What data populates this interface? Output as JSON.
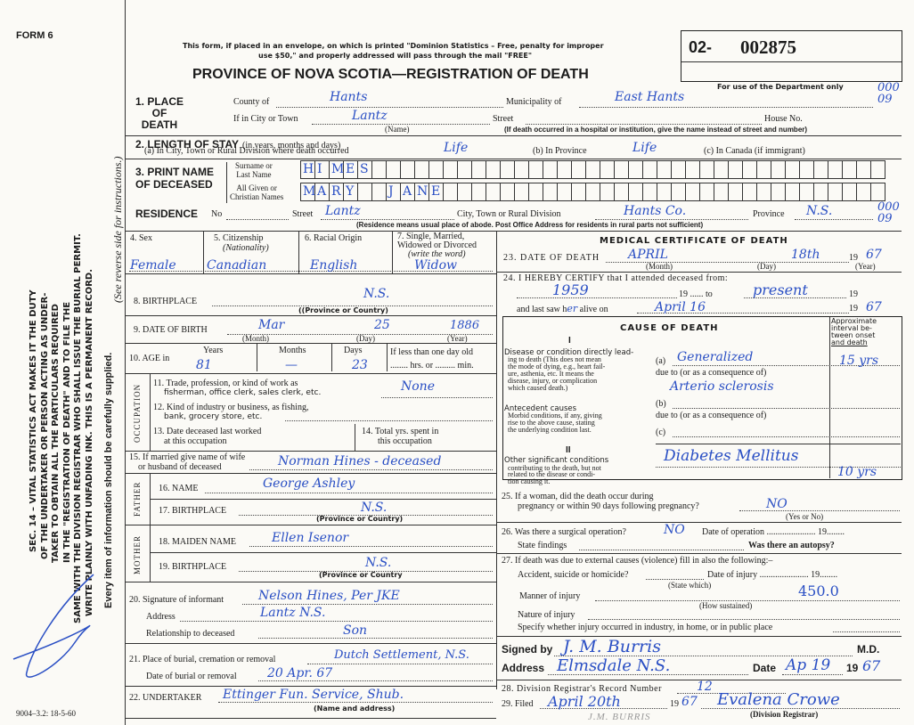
{
  "form": {
    "form_number": "FORM 6",
    "notice": [
      "This form, if placed in an envelope, on which is printed \"Dominion Statistics – Free, penalty for improper",
      "use $50,\" and properly addressed will pass through the mail \"FREE\""
    ],
    "title": "PROVINCE OF NOVA SCOTIA—REGISTRATION OF DEATH",
    "registration_number_prefix": "02-",
    "registration_number": "002875",
    "department_note": "For use of the Department only",
    "department_codes": [
      "000",
      "09",
      "000",
      "09"
    ],
    "print_code": "9004–3.2: 18-5-60"
  },
  "sidebar": {
    "statute_lines": [
      "SEC. 14 – VITAL STATISTICS ACT MAKES IT THE DUTY",
      "OF THE UNDERTAKER OR PERSON ACTING AS UNDER-",
      "TAKER TO OBTAIN ALL THE PARTICULARS REQUIRED",
      "IN THE \"REGISTRATION OF DEATH\" AND TO FILE THE",
      "SAME WITH THE DIVISION REGISTRAR WHO SHALL ISSUE THE BURIAL PERMIT.",
      "WRITE PLAINLY WITH UNFADING INK. THIS IS A PERMANENT RECORD."
    ],
    "every_item": "Every item of information should be carefully supplied.",
    "see_reverse": "(See reverse side for instructions.)"
  },
  "place_of_death": {
    "label": "1. PLACE OF DEATH",
    "label_lines": [
      "1. PLACE",
      "OF",
      "DEATH"
    ],
    "county_label": "County of",
    "county_value": "Hants",
    "municipality_label": "Municipality of",
    "municipality_value": "East Hants",
    "city_label": "If in City or Town",
    "city_value": "Lantz",
    "name_caption": "(Name)",
    "street_label": "Street",
    "house_label": "House No.",
    "hospital_note": "(If death occurred in a hospital or institution, give the name instead of street and number)"
  },
  "length_of_stay": {
    "label": "2. LENGTH OF STAY",
    "label_suffix": "(in years, months and days)",
    "a_label": "(a) In City, Town or Rural Division where death occurred",
    "a_value": "Life",
    "b_label": "(b) In Province",
    "b_value": "Life",
    "c_label": "(c) In Canada (if immigrant)"
  },
  "name": {
    "label_lines": [
      "3. PRINT NAME",
      "OF DECEASED"
    ],
    "surname_label_lines": [
      "Surname or",
      "Last Name"
    ],
    "given_label_lines": [
      "All Given or",
      "Christian Names"
    ],
    "surname_letters": [
      "H",
      "I",
      "M",
      "E",
      "S"
    ],
    "given_letters": [
      "M",
      "A",
      "R",
      "Y",
      "",
      "",
      "J",
      "A",
      "N",
      "E"
    ]
  },
  "residence": {
    "label": "RESIDENCE",
    "no_label": "No",
    "street_label": "Street",
    "street_value": "Lantz",
    "city_label": "City, Town or Rural Division",
    "city_value": "Hants Co.",
    "province_label": "Province",
    "province_value": "N.S.",
    "note": "(Residence means usual place of abode. Post Office Address for residents in rural parts not sufficient)"
  },
  "personal": {
    "sex_label": "4. Sex",
    "sex_value": "Female",
    "citizenship_label": "5. Citizenship",
    "citizenship_sub": "(Nationality)",
    "citizenship_value": "Canadian",
    "racial_label": "6. Racial Origin",
    "racial_value": "English",
    "marital_label_lines": [
      "7. Single, Married,",
      "Widowed or Divorced",
      "(write the word)"
    ],
    "marital_value": "Widow",
    "birthplace_label": "8. BIRTHPLACE",
    "birthplace_value": "N.S.",
    "birthplace_caption": "((Province or Country)",
    "dob_label": "9. DATE OF BIRTH",
    "dob_month": "Mar",
    "dob_day": "25",
    "dob_year": "1886",
    "month_caption": "(Month)",
    "day_caption": "(Day)",
    "year_caption": "(Year)",
    "age_label": "10. AGE in",
    "years_label": "Years",
    "years_value": "81",
    "months_label": "Months",
    "months_value": "—",
    "days_label": "Days",
    "days_value": "23",
    "less_than_day": "If less than one day old",
    "hrs_min": "........ hrs. or ......... min."
  },
  "occupation": {
    "side_label": "OCCUPATION",
    "q11": [
      "11. Trade, profession, or kind of work as",
      "fisherman, office clerk, sales clerk, etc."
    ],
    "q11_value": "None",
    "q12": [
      "12. Kind of industry or business, as fishing,",
      "bank, grocery store, etc."
    ],
    "q13": [
      "13. Date deceased last worked",
      "at this occupation"
    ],
    "q14": [
      "14. Total yrs. spent in",
      "this occupation"
    ]
  },
  "spouse": {
    "label_lines": [
      "15. If married give name of wife",
      "or husband of deceased"
    ],
    "value": "Norman Hines - deceased"
  },
  "father": {
    "side_label": "FATHER",
    "name_label": "16. NAME",
    "name_value": "George Ashley",
    "birthplace_label": "17. BIRTHPLACE",
    "birthplace_value": "N.S.",
    "caption": "(Province or Country)"
  },
  "mother": {
    "side_label": "MOTHER",
    "maiden_label": "18. MAIDEN NAME",
    "maiden_value": "Ellen Isenor",
    "birthplace_label": "19. BIRTHPLACE",
    "birthplace_value": "N.S.",
    "caption": "(Province or Country"
  },
  "informant": {
    "signature_label": "20. Signature of informant",
    "signature_value": "Nelson Hines, Per JKE",
    "address_label": "Address",
    "address_value": "Lantz N.S.",
    "relationship_label": "Relationship to deceased",
    "relationship_value": "Son"
  },
  "burial": {
    "place_label": "21. Place of burial, cremation or removal",
    "place_value": "Dutch Settlement, N.S.",
    "date_label": "Date of burial or removal",
    "date_value": "20 Apr. 67"
  },
  "undertaker": {
    "label": "22. UNDERTAKER",
    "value": "Ettinger Fun. Service, Shub.",
    "caption": "(Name and address)"
  },
  "medical": {
    "title": "MEDICAL CERTIFICATE OF DEATH",
    "dod_label": "23. DATE OF DEATH",
    "dod_month": "APRIL",
    "dod_day": "18th",
    "dod_year_prefix": "19",
    "dod_year": "67",
    "certify_label": "24. I HEREBY CERTIFY that I attended deceased from:",
    "from_value": "1959",
    "to_label": "19 ...... to",
    "to_value": "present",
    "year_prefix": "19",
    "last_saw_label": "and last saw h",
    "last_saw_pronoun": "er",
    "alive_on_label": "alive on",
    "last_saw_value": "April 16",
    "last_saw_year": "67"
  },
  "cause": {
    "title": "CAUSE OF DEATH",
    "part1": "I",
    "direct_heading": "Disease or condition directly lead-",
    "direct_text": [
      "ing to death (This does not mean",
      "the mode of dying, e.g., heart fail-",
      "ure, asthenia, etc. It means the",
      "disease, injury, or complication",
      "which caused death.)"
    ],
    "interval_label": [
      "Approximate",
      "interval be-",
      "tween onset",
      "and death"
    ],
    "a_label": "(a)",
    "a_value": "Generalized",
    "due_to": "due to (or as a consequence of)",
    "a_due_value": "Arterio sclerosis",
    "a_interval": "15 yrs",
    "antecedent_heading": "Antecedent causes",
    "antecedent_text": [
      "Morbid conditions, if any, giving",
      "rise to the above cause, stating",
      "the underlying condition last."
    ],
    "b_label": "(b)",
    "c_label": "(c)",
    "part2": "II",
    "other_heading": "Other significant conditions",
    "other_text": [
      "contributing to the death, but not",
      "related to the disease or condi-",
      "tion causing it."
    ],
    "other_value": "Diabetes Mellitus",
    "other_interval": "10 yrs"
  },
  "questions": {
    "q25": [
      "25. If a woman, did the death occur during",
      "pregnancy or within 90 days following pregnancy?"
    ],
    "q25_value": "NO",
    "yes_no_caption": "(Yes or No)",
    "q26": "26. Was there a surgical operation?",
    "q26_value": "NO",
    "date_of_operation": "Date of operation ...................... 19........",
    "state_findings": "State findings",
    "autopsy": "Was there an autopsy?",
    "q27": "27. If death was due to external causes (violence) fill in also the following:–",
    "accident": "Accident, suicide or homicide?",
    "state_which": "(State which)",
    "date_of_injury": "Date of injury ...................... 19........",
    "manner": "Manner of injury",
    "manner_value": "450.0",
    "how_sustained": "(How sustained)",
    "nature": "Nature of injury",
    "specify": "Specify whether injury occurred in industry, in home, or in public place"
  },
  "signature": {
    "signed_by_label": "Signed by",
    "signed_by_value": "J. M. Burris",
    "md": "M.D.",
    "address_label": "Address",
    "address_value": "Elmsdale N.S.",
    "date_label": "Date",
    "date_value": "Ap 19",
    "year_prefix": "19",
    "year_value": "67"
  },
  "registrar": {
    "record_label": "28. Division Registrar's Record Number",
    "record_value": "12",
    "filed_label": "29. Filed",
    "filed_value": "April 20th",
    "filed_year_prefix": "19",
    "filed_year": "67",
    "registrar_value": "Evalena Crowe",
    "registrar_caption": "(Division Registrar)",
    "stamp": "J.M. BURRIS"
  },
  "colors": {
    "ink": "#2a4fc4",
    "print": "#1b1b1b",
    "paper": "#fbfaf6"
  }
}
